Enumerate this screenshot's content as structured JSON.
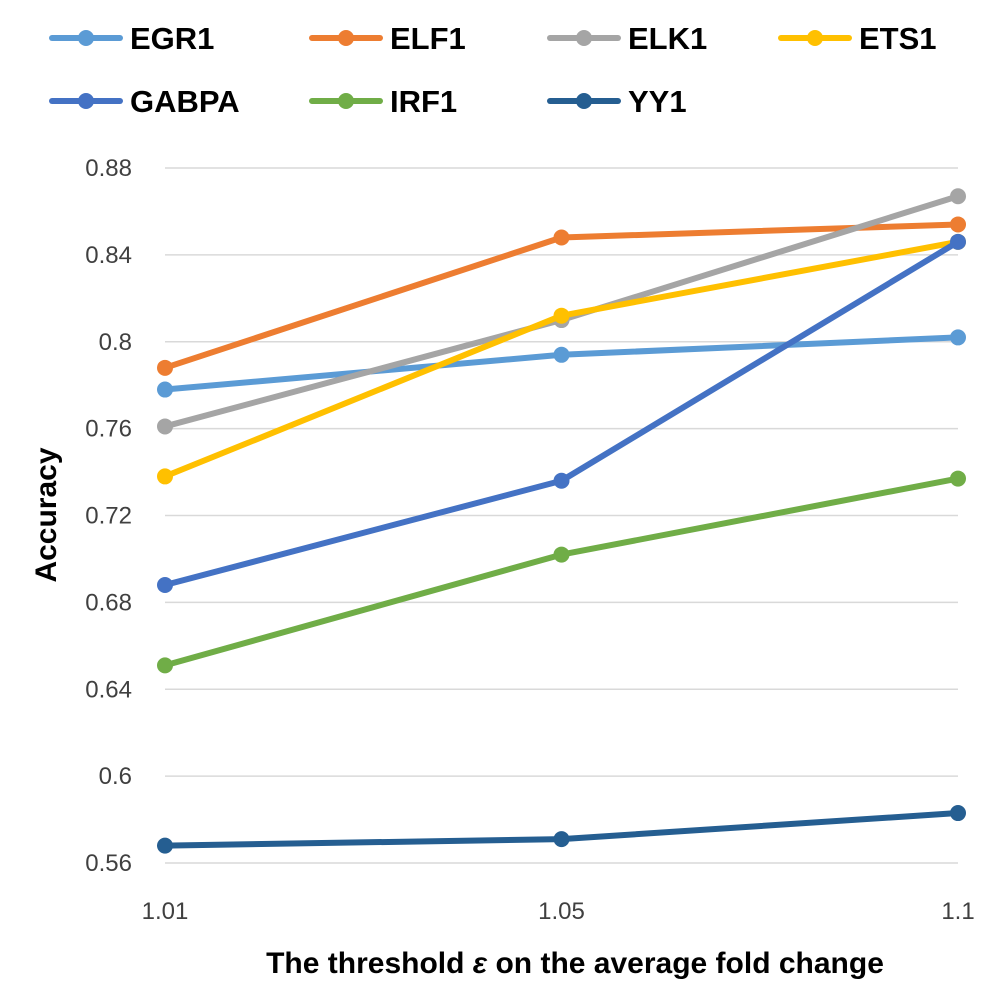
{
  "chart_data": {
    "type": "line",
    "x": [
      "1.01",
      "1.05",
      "1.1"
    ],
    "xlabel": {
      "prefix": "The threshold ",
      "symbol": "ε",
      "suffix": " on the average fold change"
    },
    "ylabel": "Accuracy",
    "ylim": [
      0.56,
      0.88
    ],
    "yticks": [
      "0.56",
      "0.6",
      "0.64",
      "0.68",
      "0.72",
      "0.76",
      "0.8",
      "0.84",
      "0.88"
    ],
    "grid": true,
    "legend_position": "top",
    "series": [
      {
        "name": "EGR1",
        "color": "#5b9bd5",
        "values": [
          0.778,
          0.794,
          0.802
        ]
      },
      {
        "name": "ELF1",
        "color": "#ed7d31",
        "values": [
          0.788,
          0.848,
          0.854
        ]
      },
      {
        "name": "ELK1",
        "color": "#a5a5a5",
        "values": [
          0.761,
          0.81,
          0.867
        ]
      },
      {
        "name": "ETS1",
        "color": "#ffc000",
        "values": [
          0.738,
          0.812,
          0.846
        ]
      },
      {
        "name": "GABPA",
        "color": "#4472c4",
        "values": [
          0.688,
          0.736,
          0.846
        ]
      },
      {
        "name": "IRF1",
        "color": "#70ad47",
        "values": [
          0.651,
          0.702,
          0.737
        ]
      },
      {
        "name": "YY1",
        "color": "#255e91",
        "values": [
          0.568,
          0.571,
          0.583
        ]
      }
    ]
  }
}
